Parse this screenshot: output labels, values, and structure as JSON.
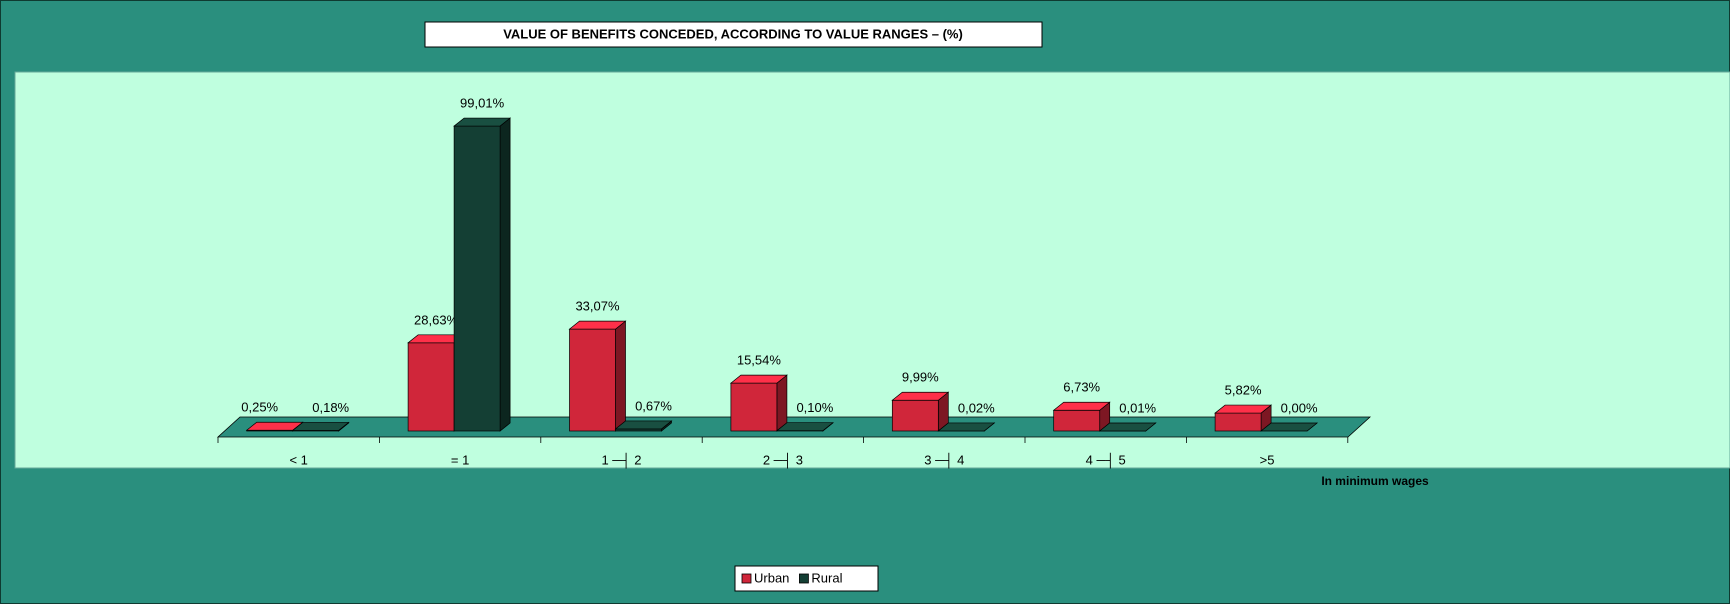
{
  "chart_data": {
    "type": "bar3d",
    "title": "VALUE OF BENEFITS CONCEDED, ACCORDING TO VALUE RANGES – (%)",
    "x_label": "In minimum wages",
    "categories": [
      "< 1",
      "= 1",
      "1 ─┤ 2",
      "2 ─┤ 3",
      "3 ─┤ 4",
      "4 ─┤ 5",
      ">5"
    ],
    "ylim": [
      0,
      100
    ],
    "legend": "bottom",
    "series": [
      {
        "name": "Urban",
        "color": "#d0263a",
        "values": [
          0.25,
          28.63,
          33.07,
          15.54,
          9.99,
          6.73,
          5.82
        ],
        "value_labels": [
          "0,25%",
          "28,63%",
          "33,07%",
          "15,54%",
          "9,99%",
          "6,73%",
          "5,82%"
        ]
      },
      {
        "name": "Rural",
        "color": "#143f34",
        "values": [
          0.18,
          99.01,
          0.67,
          0.1,
          0.02,
          0.01,
          0.0
        ],
        "value_labels": [
          "0,18%",
          "99,01%",
          "0,67%",
          "0,10%",
          "0,02%",
          "0,01%",
          "0,00%"
        ]
      }
    ]
  }
}
